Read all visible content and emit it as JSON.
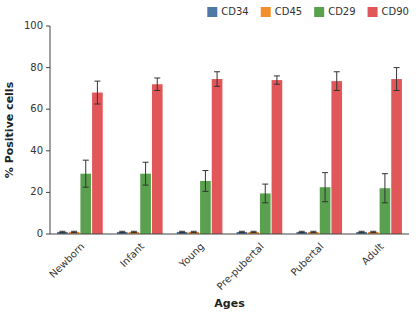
{
  "chart_data": {
    "type": "bar",
    "xlabel": "Ages",
    "ylabel": "% Positive cells",
    "categories": [
      "Newborn",
      "Infant",
      "Young",
      "Pre-pubertal",
      "Pubertal",
      "Adult"
    ],
    "series": [
      {
        "name": "CD34",
        "color": "#4e79a7",
        "values": [
          1.0,
          1.0,
          1.0,
          1.0,
          1.0,
          1.0
        ],
        "errors": [
          0.3,
          0.3,
          0.3,
          0.3,
          0.3,
          0.3
        ]
      },
      {
        "name": "CD45",
        "color": "#f28e2b",
        "values": [
          1.0,
          1.0,
          1.0,
          1.0,
          1.0,
          1.0
        ],
        "errors": [
          0.3,
          0.3,
          0.3,
          0.3,
          0.3,
          0.3
        ]
      },
      {
        "name": "CD29",
        "color": "#59a14f",
        "values": [
          29.0,
          29.0,
          25.5,
          19.5,
          22.5,
          22.0
        ],
        "errors": [
          6.5,
          5.5,
          5.0,
          4.5,
          7.0,
          7.0
        ]
      },
      {
        "name": "CD90",
        "color": "#e15759",
        "values": [
          68.0,
          72.0,
          74.5,
          74.0,
          73.5,
          74.5
        ],
        "errors": [
          5.5,
          3.0,
          3.5,
          2.0,
          4.5,
          5.5
        ]
      }
    ],
    "ylim": [
      0,
      100
    ],
    "yticks": [
      0,
      20,
      40,
      60,
      80,
      100
    ],
    "grid": false,
    "legend": "upper right"
  }
}
